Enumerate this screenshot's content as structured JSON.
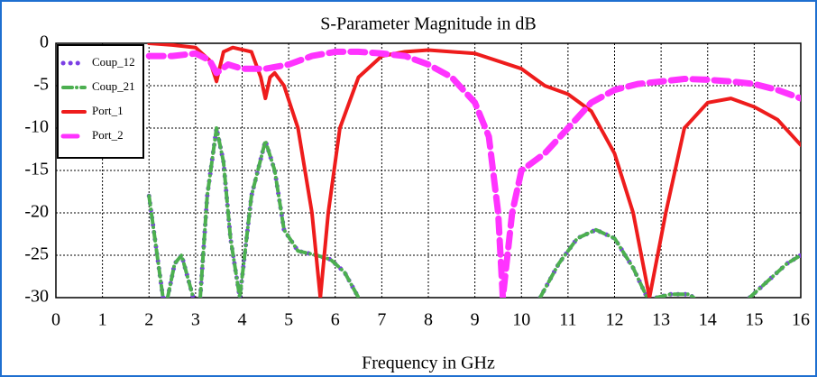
{
  "chart_data": {
    "type": "line",
    "title": "S-Parameter Magnitude in dB",
    "xlabel": "Frequency in GHz",
    "xlim": [
      0,
      16
    ],
    "xticks": [
      0,
      1,
      2,
      3,
      4,
      5,
      6,
      7,
      8,
      9,
      10,
      11,
      12,
      13,
      14,
      15,
      16
    ],
    "ylim": [
      -30,
      0
    ],
    "yticks": [
      0,
      -5,
      -10,
      -15,
      -20,
      -25,
      -30
    ],
    "grid": true,
    "legend": "upper left",
    "series": [
      {
        "name": "Coup_12",
        "color": "#7b3fe4",
        "linestyle": "dotted",
        "x": [
          2.0,
          2.15,
          2.3,
          2.35,
          2.4,
          2.55,
          2.7,
          2.85,
          2.95,
          3.0,
          3.1,
          3.25,
          3.45,
          3.6,
          3.75,
          3.95,
          4.2,
          4.5,
          4.7,
          4.9,
          5.2,
          5.6,
          5.9,
          6.2,
          6.5,
          8.0,
          10.4,
          10.8,
          11.2,
          11.6,
          12.0,
          12.4,
          12.7,
          12.8,
          12.9,
          13.2,
          13.6,
          13.7,
          14.0,
          14.9,
          15.3,
          15.7,
          16.0
        ],
        "values": [
          -18,
          -24,
          -30,
          null,
          -30,
          -26,
          -25,
          -28,
          -30,
          null,
          -30,
          -18,
          -10,
          -14,
          -23,
          -30,
          -18,
          -11.5,
          -15,
          -22,
          -24.5,
          -25,
          -25.5,
          -27,
          -30,
          null,
          -30,
          -26,
          -23,
          -22,
          -23,
          -26.5,
          -30,
          null,
          -30,
          -29.6,
          -29.6,
          -30,
          null,
          -30,
          -28,
          -26,
          -25
        ]
      },
      {
        "name": "Coup_21",
        "color": "#4caf50",
        "linestyle": "dashdot",
        "x": [
          2.0,
          2.15,
          2.3,
          2.35,
          2.4,
          2.55,
          2.7,
          2.85,
          2.95,
          3.0,
          3.1,
          3.25,
          3.45,
          3.6,
          3.75,
          3.95,
          4.2,
          4.5,
          4.7,
          4.9,
          5.2,
          5.6,
          5.9,
          6.2,
          6.5,
          8.0,
          10.4,
          10.8,
          11.2,
          11.6,
          12.0,
          12.4,
          12.7,
          12.8,
          12.9,
          13.2,
          13.6,
          13.7,
          14.0,
          14.9,
          15.3,
          15.7,
          16.0
        ],
        "values": [
          -18,
          -24,
          -30,
          null,
          -30,
          -26,
          -25,
          -28,
          -30,
          null,
          -30,
          -18,
          -10,
          -14,
          -23,
          -30,
          -18,
          -11.5,
          -15,
          -22,
          -24.5,
          -25,
          -25.5,
          -27,
          -30,
          null,
          -30,
          -26,
          -23,
          -22,
          -23,
          -26.5,
          -30,
          null,
          -30,
          -29.6,
          -29.6,
          -30,
          null,
          -30,
          -28,
          -26,
          -25
        ]
      },
      {
        "name": "Port_1",
        "color": "#ee1c1c",
        "linestyle": "solid",
        "x": [
          2,
          2.5,
          3,
          3.3,
          3.45,
          3.6,
          3.8,
          4.2,
          4.4,
          4.5,
          4.6,
          4.7,
          4.9,
          5.2,
          5.5,
          5.68,
          5.85,
          6.1,
          6.5,
          7,
          7.5,
          8,
          9,
          10,
          10.5,
          11,
          11.5,
          12,
          12.4,
          12.75,
          13.1,
          13.5,
          14,
          14.5,
          15,
          15.5,
          16
        ],
        "values": [
          0,
          -0.2,
          -0.5,
          -2,
          -4.5,
          -1,
          -0.5,
          -1,
          -4,
          -6.5,
          -4,
          -3.5,
          -5,
          -10,
          -20,
          -30,
          -20,
          -10,
          -4,
          -1.5,
          -1,
          -0.8,
          -1.2,
          -3,
          -5,
          -6,
          -8,
          -13,
          -20,
          -30,
          -20,
          -10,
          -7,
          -6.5,
          -7.5,
          -9,
          -12
        ]
      },
      {
        "name": "Port_2",
        "color": "#ff33ff",
        "linestyle": "dashed",
        "x": [
          2,
          2.5,
          3,
          3.3,
          3.45,
          3.7,
          4,
          4.5,
          5,
          5.5,
          6,
          6.5,
          7,
          7.5,
          8,
          8.5,
          9,
          9.3,
          9.5,
          9.6,
          9.8,
          10,
          10.5,
          11,
          11.5,
          12,
          12.5,
          13,
          13.5,
          14,
          14.5,
          15,
          15.5,
          16
        ],
        "values": [
          -1.5,
          -1.5,
          -1.2,
          -2,
          -3.5,
          -2.5,
          -3,
          -3,
          -2.5,
          -1.5,
          -1,
          -1,
          -1.2,
          -1.5,
          -2.5,
          -4,
          -7,
          -11,
          -20,
          -30,
          -20,
          -15,
          -13,
          -10,
          -7,
          -5.5,
          -4.8,
          -4.5,
          -4.2,
          -4.3,
          -4.5,
          -4.8,
          -5.5,
          -6.5
        ]
      }
    ]
  }
}
